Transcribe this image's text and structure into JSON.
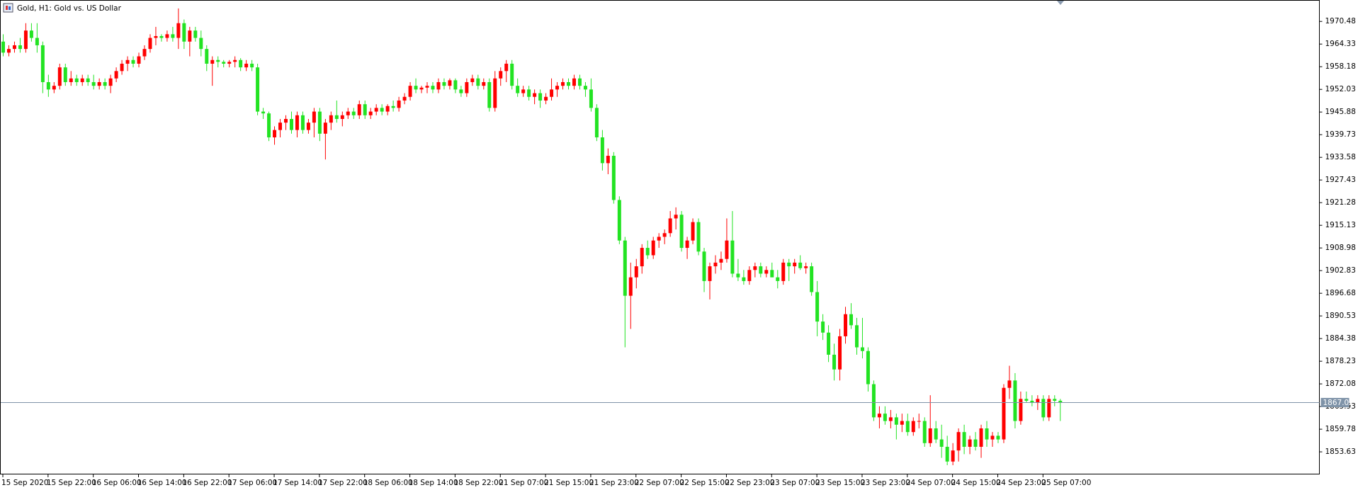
{
  "chart_data": {
    "type": "candlestick",
    "title": "Gold, H1:  Gold vs. US Dollar",
    "up_color": "#ff0000",
    "down_color": "#22e322",
    "price_line_color": "#7f93a8",
    "ylim": [
      1847.5,
      1976.1
    ],
    "yticks": [
      1970.48,
      1964.33,
      1958.18,
      1952.03,
      1945.88,
      1939.73,
      1933.58,
      1927.43,
      1921.28,
      1915.13,
      1908.98,
      1902.83,
      1896.68,
      1890.53,
      1884.38,
      1878.23,
      1872.08,
      1865.93,
      1859.78,
      1853.63
    ],
    "last_price": 1867.02,
    "categories": [
      "15 Sep 2020",
      null,
      null,
      null,
      null,
      null,
      null,
      null,
      "15 Sep 22:00",
      null,
      null,
      null,
      null,
      null,
      null,
      null,
      "16 Sep 06:00",
      null,
      null,
      null,
      null,
      null,
      null,
      null,
      "16 Sep 14:00",
      null,
      null,
      null,
      null,
      null,
      null,
      null,
      "16 Sep 22:00",
      null,
      null,
      null,
      null,
      null,
      null,
      null,
      "17 Sep 06:00",
      null,
      null,
      null,
      null,
      null,
      null,
      null,
      "17 Sep 14:00",
      null,
      null,
      null,
      null,
      null,
      null,
      null,
      "17 Sep 22:00",
      null,
      null,
      null,
      null,
      null,
      null,
      null,
      "18 Sep 06:00",
      null,
      null,
      null,
      null,
      null,
      null,
      null,
      "18 Sep 14:00",
      null,
      null,
      null,
      null,
      null,
      null,
      null,
      "18 Sep 22:00",
      null,
      null,
      null,
      null,
      null,
      null,
      null,
      "21 Sep 07:00",
      null,
      null,
      null,
      null,
      null,
      null,
      null,
      "21 Sep 15:00",
      null,
      null,
      null,
      null,
      null,
      null,
      null,
      "21 Sep 23:00",
      null,
      null,
      null,
      null,
      null,
      null,
      null,
      "22 Sep 07:00",
      null,
      null,
      null,
      null,
      null,
      null,
      null,
      "22 Sep 15:00",
      null,
      null,
      null,
      null,
      null,
      null,
      null,
      "22 Sep 23:00",
      null,
      null,
      null,
      null,
      null,
      null,
      null,
      "23 Sep 07:00",
      null,
      null,
      null,
      null,
      null,
      null,
      null,
      "23 Sep 15:00",
      null,
      null,
      null,
      null,
      null,
      null,
      null,
      "23 Sep 23:00",
      null,
      null,
      null,
      null,
      null,
      null,
      null,
      "24 Sep 07:00",
      null,
      null,
      null,
      null,
      null,
      null,
      null,
      "24 Sep 15:00",
      null,
      null,
      null,
      null,
      null,
      null,
      null,
      "24 Sep 23:00",
      null,
      null,
      null,
      null,
      null,
      null,
      null,
      "25 Sep 07:00",
      null,
      null,
      null
    ],
    "candles": [
      [
        1965,
        1967,
        1961,
        1962
      ],
      [
        1962,
        1964,
        1961,
        1963
      ],
      [
        1963,
        1965,
        1962,
        1964
      ],
      [
        1964,
        1966,
        1962,
        1963
      ],
      [
        1963,
        1970,
        1962,
        1968
      ],
      [
        1968,
        1970,
        1965,
        1966
      ],
      [
        1966,
        1970,
        1962,
        1964
      ],
      [
        1964,
        1965,
        1951,
        1954
      ],
      [
        1954,
        1956,
        1950,
        1952
      ],
      [
        1952,
        1954,
        1951,
        1953
      ],
      [
        1953,
        1959,
        1952,
        1958
      ],
      [
        1958,
        1959,
        1953,
        1954
      ],
      [
        1954,
        1957,
        1953,
        1955
      ],
      [
        1955,
        1956,
        1953,
        1954
      ],
      [
        1954,
        1956,
        1953,
        1955
      ],
      [
        1955,
        1956,
        1953,
        1954
      ],
      [
        1954,
        1956,
        1952,
        1953
      ],
      [
        1953,
        1955,
        1952,
        1954
      ],
      [
        1954,
        1955,
        1952,
        1953
      ],
      [
        1953,
        1956,
        1951,
        1955
      ],
      [
        1955,
        1958,
        1954,
        1957
      ],
      [
        1957,
        1960,
        1956,
        1959
      ],
      [
        1959,
        1961,
        1957,
        1960
      ],
      [
        1960,
        1961,
        1958,
        1959
      ],
      [
        1959,
        1962,
        1958,
        1961
      ],
      [
        1961,
        1964,
        1960,
        1963
      ],
      [
        1963,
        1967,
        1962,
        1966
      ],
      [
        1966,
        1969,
        1964,
        1966.5
      ],
      [
        1966.5,
        1967,
        1965,
        1966
      ],
      [
        1966,
        1968,
        1965,
        1967
      ],
      [
        1967,
        1969,
        1965,
        1966
      ],
      [
        1966,
        1974,
        1963,
        1970
      ],
      [
        1970,
        1971,
        1963,
        1965
      ],
      [
        1965,
        1969,
        1961,
        1968
      ],
      [
        1968,
        1969,
        1965,
        1966
      ],
      [
        1966,
        1968,
        1961,
        1963
      ],
      [
        1963,
        1964,
        1957,
        1959
      ],
      [
        1959,
        1961,
        1953,
        1960
      ],
      [
        1960,
        1961,
        1958,
        1959.5
      ],
      [
        1959.5,
        1960,
        1958,
        1959
      ],
      [
        1959,
        1960,
        1958,
        1959.5
      ],
      [
        1959.5,
        1961,
        1958,
        1960
      ],
      [
        1960,
        1960.5,
        1957,
        1958
      ],
      [
        1958,
        1960,
        1957,
        1959
      ],
      [
        1959,
        1960,
        1957,
        1958
      ],
      [
        1958,
        1959,
        1945,
        1946
      ],
      [
        1946,
        1947,
        1944,
        1945.5
      ],
      [
        1945.5,
        1946,
        1938,
        1939
      ],
      [
        1939,
        1942,
        1937,
        1941
      ],
      [
        1941,
        1944,
        1939,
        1943
      ],
      [
        1943,
        1945,
        1941,
        1944
      ],
      [
        1944,
        1946,
        1940,
        1941
      ],
      [
        1941,
        1946,
        1939,
        1945
      ],
      [
        1945,
        1946,
        1940,
        1941
      ],
      [
        1941,
        1944,
        1940,
        1943
      ],
      [
        1943,
        1947,
        1939,
        1946
      ],
      [
        1946,
        1947,
        1938,
        1940
      ],
      [
        1940,
        1944,
        1933,
        1943
      ],
      [
        1943,
        1946,
        1941,
        1945
      ],
      [
        1945,
        1949,
        1943,
        1944
      ],
      [
        1944,
        1946,
        1942,
        1945
      ],
      [
        1945,
        1947,
        1944,
        1946
      ],
      [
        1946,
        1947,
        1944,
        1945
      ],
      [
        1945,
        1949,
        1944,
        1948
      ],
      [
        1948,
        1949,
        1944,
        1945
      ],
      [
        1945,
        1947,
        1944,
        1946
      ],
      [
        1946,
        1948,
        1945,
        1947
      ],
      [
        1947,
        1948,
        1945,
        1946
      ],
      [
        1946,
        1948,
        1945,
        1947.5
      ],
      [
        1947.5,
        1949,
        1946,
        1947
      ],
      [
        1947,
        1950,
        1946,
        1949
      ],
      [
        1949,
        1951,
        1948,
        1950
      ],
      [
        1950,
        1954,
        1949,
        1953
      ],
      [
        1953,
        1955,
        1951,
        1952
      ],
      [
        1952,
        1953,
        1951,
        1952.5
      ],
      [
        1952.5,
        1954,
        1951,
        1953
      ],
      [
        1953,
        1954,
        1951,
        1952
      ],
      [
        1952,
        1955,
        1951,
        1954
      ],
      [
        1954,
        1955,
        1952,
        1953
      ],
      [
        1953,
        1955,
        1952,
        1954.5
      ],
      [
        1954.5,
        1955,
        1951,
        1952
      ],
      [
        1952,
        1953,
        1950,
        1951
      ],
      [
        1951,
        1955,
        1950,
        1954
      ],
      [
        1954,
        1956,
        1953,
        1955
      ],
      [
        1955,
        1956,
        1952,
        1953
      ],
      [
        1953,
        1955,
        1952,
        1954
      ],
      [
        1954,
        1955,
        1946,
        1947
      ],
      [
        1947,
        1957,
        1946,
        1955
      ],
      [
        1955,
        1958,
        1953,
        1957
      ],
      [
        1957,
        1960,
        1954,
        1959
      ],
      [
        1959,
        1960,
        1952,
        1953
      ],
      [
        1953,
        1955,
        1950,
        1951
      ],
      [
        1951,
        1953,
        1950,
        1952
      ],
      [
        1952,
        1953,
        1949,
        1950
      ],
      [
        1950,
        1952,
        1948,
        1951
      ],
      [
        1951,
        1952,
        1947,
        1949
      ],
      [
        1949,
        1951,
        1948,
        1950
      ],
      [
        1950,
        1955,
        1949,
        1952
      ],
      [
        1952,
        1954,
        1950,
        1953
      ],
      [
        1953,
        1955,
        1952,
        1954
      ],
      [
        1954,
        1955,
        1952,
        1953
      ],
      [
        1953,
        1956,
        1952,
        1955
      ],
      [
        1955,
        1956,
        1952,
        1953
      ],
      [
        1953,
        1954,
        1950,
        1952
      ],
      [
        1952,
        1955,
        1946,
        1947
      ],
      [
        1947,
        1948,
        1938,
        1939
      ],
      [
        1939,
        1941,
        1930,
        1932
      ],
      [
        1932,
        1936,
        1929,
        1934
      ],
      [
        1934,
        1935,
        1921,
        1922
      ],
      [
        1922,
        1923,
        1910,
        1911
      ],
      [
        1911,
        1912,
        1882,
        1896
      ],
      [
        1896,
        1905,
        1887,
        1901
      ],
      [
        1901,
        1906,
        1898,
        1904
      ],
      [
        1904,
        1910,
        1902,
        1909
      ],
      [
        1909,
        1911,
        1906,
        1907
      ],
      [
        1907,
        1912,
        1906,
        1911
      ],
      [
        1911,
        1913,
        1909,
        1912
      ],
      [
        1912,
        1914,
        1910,
        1913
      ],
      [
        1913,
        1919,
        1912,
        1917
      ],
      [
        1917,
        1920,
        1914,
        1918
      ],
      [
        1918,
        1919,
        1908,
        1909
      ],
      [
        1909,
        1912,
        1906,
        1911
      ],
      [
        1911,
        1917,
        1910,
        1916
      ],
      [
        1916,
        1917,
        1907,
        1908
      ],
      [
        1908,
        1909,
        1897,
        1900
      ],
      [
        1900,
        1905,
        1895,
        1904
      ],
      [
        1904,
        1907,
        1902,
        1905
      ],
      [
        1905,
        1908,
        1903,
        1906
      ],
      [
        1906,
        1917,
        1905,
        1911
      ],
      [
        1911,
        1919,
        1901,
        1902
      ],
      [
        1902,
        1906,
        1900,
        1901
      ],
      [
        1901,
        1903,
        1899,
        1900
      ],
      [
        1900,
        1904,
        1899,
        1903
      ],
      [
        1903,
        1905,
        1901,
        1904
      ],
      [
        1904,
        1905,
        1901,
        1902
      ],
      [
        1902,
        1904,
        1901,
        1903
      ],
      [
        1903,
        1905,
        1902,
        1901
      ],
      [
        1901,
        1903,
        1898,
        1900
      ],
      [
        1900,
        1906,
        1899,
        1905
      ],
      [
        1905,
        1906,
        1900,
        1904
      ],
      [
        1904,
        1906,
        1902,
        1905
      ],
      [
        1905,
        1907,
        1903,
        1903.5
      ],
      [
        1903.5,
        1905,
        1902,
        1904
      ],
      [
        1904,
        1905,
        1896,
        1897
      ],
      [
        1897,
        1900,
        1885,
        1889
      ],
      [
        1889,
        1891,
        1884,
        1886
      ],
      [
        1886,
        1888,
        1878,
        1880
      ],
      [
        1880,
        1883,
        1873,
        1876
      ],
      [
        1876,
        1887,
        1873,
        1885
      ],
      [
        1885,
        1893,
        1883,
        1891
      ],
      [
        1891,
        1894,
        1887,
        1888
      ],
      [
        1888,
        1890,
        1880,
        1882
      ],
      [
        1882,
        1890,
        1879,
        1881
      ],
      [
        1881,
        1882,
        1870,
        1872
      ],
      [
        1872,
        1873,
        1862,
        1863
      ],
      [
        1863,
        1866,
        1860,
        1864
      ],
      [
        1864,
        1866,
        1861,
        1862
      ],
      [
        1862,
        1865,
        1860,
        1863
      ],
      [
        1863,
        1864,
        1857,
        1861
      ],
      [
        1861,
        1864,
        1859,
        1862
      ],
      [
        1862,
        1864,
        1858,
        1859
      ],
      [
        1859,
        1863,
        1858,
        1862
      ],
      [
        1862,
        1864,
        1860,
        1862
      ],
      [
        1862,
        1863,
        1855,
        1856
      ],
      [
        1856,
        1869,
        1855,
        1860
      ],
      [
        1860,
        1862,
        1856,
        1857
      ],
      [
        1857,
        1861,
        1852,
        1855
      ],
      [
        1855,
        1858,
        1850,
        1851
      ],
      [
        1851,
        1856,
        1850,
        1854
      ],
      [
        1854,
        1860,
        1851,
        1859
      ],
      [
        1859,
        1861,
        1853,
        1855
      ],
      [
        1855,
        1858,
        1853,
        1857
      ],
      [
        1857,
        1859,
        1854,
        1855
      ],
      [
        1855,
        1861,
        1852,
        1860
      ],
      [
        1860,
        1862,
        1855,
        1857
      ],
      [
        1857,
        1859,
        1855,
        1858
      ],
      [
        1858,
        1859,
        1856,
        1857
      ],
      [
        1857,
        1872,
        1856,
        1871
      ],
      [
        1871,
        1877,
        1868,
        1873
      ],
      [
        1873,
        1875,
        1860,
        1862
      ],
      [
        1862,
        1870,
        1861,
        1868
      ],
      [
        1868,
        1870,
        1867,
        1867.5
      ],
      [
        1867.5,
        1869,
        1866,
        1867
      ],
      [
        1867,
        1869,
        1865,
        1868
      ],
      [
        1868,
        1869,
        1862,
        1863
      ],
      [
        1863,
        1869,
        1862,
        1868
      ],
      [
        1868,
        1869,
        1866,
        1867.5
      ],
      [
        1867.5,
        1868,
        1862,
        1867.02
      ]
    ]
  }
}
